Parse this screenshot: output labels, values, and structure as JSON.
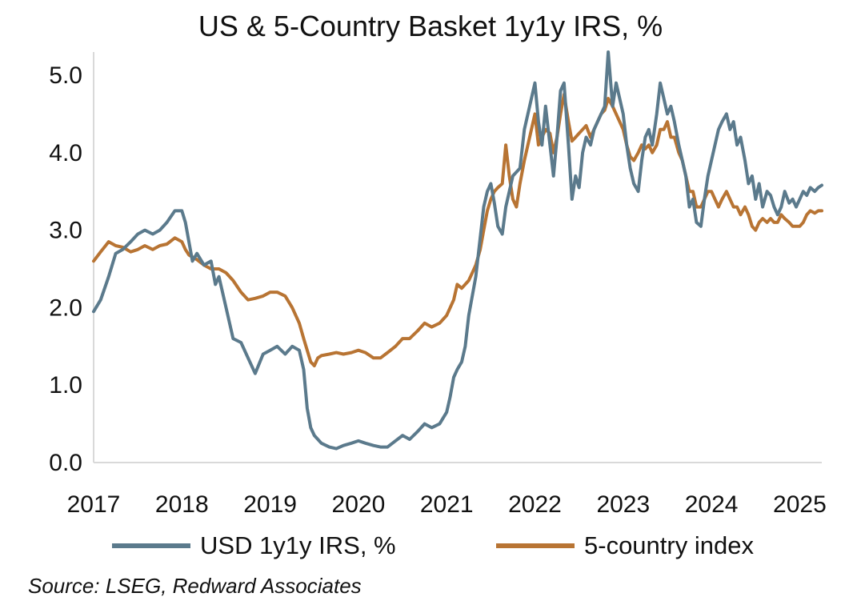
{
  "chart_data": {
    "type": "line",
    "title": "US & 5-Country Basket 1y1y IRS, %",
    "xlabel": "",
    "ylabel": "",
    "x_ticks": [
      "2017",
      "2018",
      "2019",
      "2020",
      "2021",
      "2022",
      "2023",
      "2024",
      "2025"
    ],
    "y_ticks": [
      "0.0",
      "1.0",
      "2.0",
      "3.0",
      "4.0",
      "5.0"
    ],
    "xlim": [
      2017.0,
      2025.25
    ],
    "ylim": [
      0,
      5.3
    ],
    "grid": false,
    "legend_position": "bottom",
    "source": "Source: LSEG, Redward Associates",
    "series": [
      {
        "name": "USD 1y1y IRS, %",
        "color": "#5b7a8c",
        "points": [
          [
            2017.0,
            1.95
          ],
          [
            2017.08,
            2.1
          ],
          [
            2017.17,
            2.4
          ],
          [
            2017.25,
            2.7
          ],
          [
            2017.33,
            2.75
          ],
          [
            2017.42,
            2.85
          ],
          [
            2017.5,
            2.95
          ],
          [
            2017.58,
            3.0
          ],
          [
            2017.67,
            2.95
          ],
          [
            2017.75,
            3.0
          ],
          [
            2017.83,
            3.1
          ],
          [
            2017.92,
            3.25
          ],
          [
            2018.0,
            3.25
          ],
          [
            2018.04,
            3.1
          ],
          [
            2018.08,
            2.85
          ],
          [
            2018.12,
            2.6
          ],
          [
            2018.17,
            2.7
          ],
          [
            2018.25,
            2.55
          ],
          [
            2018.33,
            2.6
          ],
          [
            2018.38,
            2.3
          ],
          [
            2018.42,
            2.4
          ],
          [
            2018.5,
            2.0
          ],
          [
            2018.58,
            1.6
          ],
          [
            2018.67,
            1.55
          ],
          [
            2018.75,
            1.35
          ],
          [
            2018.83,
            1.15
          ],
          [
            2018.92,
            1.4
          ],
          [
            2019.0,
            1.45
          ],
          [
            2019.08,
            1.5
          ],
          [
            2019.17,
            1.4
          ],
          [
            2019.25,
            1.5
          ],
          [
            2019.33,
            1.45
          ],
          [
            2019.38,
            1.2
          ],
          [
            2019.42,
            0.7
          ],
          [
            2019.46,
            0.45
          ],
          [
            2019.5,
            0.35
          ],
          [
            2019.58,
            0.25
          ],
          [
            2019.67,
            0.2
          ],
          [
            2019.75,
            0.18
          ],
          [
            2019.83,
            0.22
          ],
          [
            2019.92,
            0.25
          ],
          [
            2020.0,
            0.28
          ],
          [
            2020.08,
            0.25
          ],
          [
            2020.17,
            0.22
          ],
          [
            2020.25,
            0.2
          ],
          [
            2020.33,
            0.2
          ],
          [
            2020.42,
            0.28
          ],
          [
            2020.5,
            0.35
          ],
          [
            2020.58,
            0.3
          ],
          [
            2020.67,
            0.4
          ],
          [
            2020.75,
            0.5
          ],
          [
            2020.83,
            0.45
          ],
          [
            2020.92,
            0.5
          ],
          [
            2021.0,
            0.65
          ],
          [
            2021.04,
            0.85
          ],
          [
            2021.08,
            1.1
          ],
          [
            2021.12,
            1.2
          ],
          [
            2021.17,
            1.3
          ],
          [
            2021.21,
            1.5
          ],
          [
            2021.25,
            1.9
          ],
          [
            2021.33,
            2.4
          ],
          [
            2021.38,
            2.9
          ],
          [
            2021.42,
            3.3
          ],
          [
            2021.46,
            3.5
          ],
          [
            2021.5,
            3.6
          ],
          [
            2021.54,
            3.35
          ],
          [
            2021.58,
            3.05
          ],
          [
            2021.63,
            2.95
          ],
          [
            2021.67,
            3.3
          ],
          [
            2021.75,
            3.7
          ],
          [
            2021.83,
            3.8
          ],
          [
            2021.88,
            4.3
          ],
          [
            2021.92,
            4.5
          ],
          [
            2021.96,
            4.7
          ],
          [
            2022.0,
            4.9
          ],
          [
            2022.04,
            4.4
          ],
          [
            2022.08,
            4.1
          ],
          [
            2022.12,
            4.6
          ],
          [
            2022.17,
            4.1
          ],
          [
            2022.21,
            3.7
          ],
          [
            2022.25,
            4.2
          ],
          [
            2022.29,
            4.8
          ],
          [
            2022.33,
            4.9
          ],
          [
            2022.38,
            4.1
          ],
          [
            2022.42,
            3.4
          ],
          [
            2022.46,
            3.7
          ],
          [
            2022.5,
            3.55
          ],
          [
            2022.54,
            4.0
          ],
          [
            2022.58,
            4.2
          ],
          [
            2022.63,
            4.1
          ],
          [
            2022.67,
            4.3
          ],
          [
            2022.71,
            4.4
          ],
          [
            2022.75,
            4.5
          ],
          [
            2022.79,
            4.6
          ],
          [
            2022.83,
            5.3
          ],
          [
            2022.88,
            4.6
          ],
          [
            2022.92,
            4.9
          ],
          [
            2022.96,
            4.7
          ],
          [
            2023.0,
            4.5
          ],
          [
            2023.04,
            4.1
          ],
          [
            2023.08,
            3.8
          ],
          [
            2023.12,
            3.6
          ],
          [
            2023.17,
            3.5
          ],
          [
            2023.21,
            3.9
          ],
          [
            2023.25,
            4.2
          ],
          [
            2023.29,
            4.3
          ],
          [
            2023.33,
            4.1
          ],
          [
            2023.38,
            4.5
          ],
          [
            2023.42,
            4.9
          ],
          [
            2023.46,
            4.7
          ],
          [
            2023.5,
            4.5
          ],
          [
            2023.54,
            4.6
          ],
          [
            2023.58,
            4.4
          ],
          [
            2023.63,
            4.1
          ],
          [
            2023.67,
            3.9
          ],
          [
            2023.71,
            3.7
          ],
          [
            2023.75,
            3.3
          ],
          [
            2023.79,
            3.4
          ],
          [
            2023.83,
            3.1
          ],
          [
            2023.88,
            3.05
          ],
          [
            2023.92,
            3.4
          ],
          [
            2023.96,
            3.7
          ],
          [
            2024.0,
            3.9
          ],
          [
            2024.04,
            4.1
          ],
          [
            2024.08,
            4.3
          ],
          [
            2024.12,
            4.4
          ],
          [
            2024.17,
            4.5
          ],
          [
            2024.21,
            4.3
          ],
          [
            2024.25,
            4.4
          ],
          [
            2024.29,
            4.1
          ],
          [
            2024.33,
            4.2
          ],
          [
            2024.38,
            3.9
          ],
          [
            2024.42,
            3.6
          ],
          [
            2024.46,
            3.7
          ],
          [
            2024.5,
            3.4
          ],
          [
            2024.54,
            3.6
          ],
          [
            2024.58,
            3.3
          ],
          [
            2024.63,
            3.5
          ],
          [
            2024.67,
            3.45
          ],
          [
            2024.71,
            3.3
          ],
          [
            2024.75,
            3.2
          ],
          [
            2024.79,
            3.3
          ],
          [
            2024.83,
            3.5
          ],
          [
            2024.88,
            3.35
          ],
          [
            2024.92,
            3.4
          ],
          [
            2024.96,
            3.3
          ],
          [
            2025.0,
            3.4
          ],
          [
            2025.04,
            3.5
          ],
          [
            2025.08,
            3.45
          ],
          [
            2025.12,
            3.55
          ],
          [
            2025.17,
            3.5
          ],
          [
            2025.21,
            3.55
          ],
          [
            2025.25,
            3.58
          ]
        ]
      },
      {
        "name": "5-country index",
        "color": "#b87433",
        "points": [
          [
            2017.0,
            2.6
          ],
          [
            2017.08,
            2.72
          ],
          [
            2017.17,
            2.85
          ],
          [
            2017.25,
            2.8
          ],
          [
            2017.33,
            2.78
          ],
          [
            2017.42,
            2.72
          ],
          [
            2017.5,
            2.75
          ],
          [
            2017.58,
            2.8
          ],
          [
            2017.67,
            2.75
          ],
          [
            2017.75,
            2.8
          ],
          [
            2017.83,
            2.82
          ],
          [
            2017.92,
            2.9
          ],
          [
            2018.0,
            2.85
          ],
          [
            2018.04,
            2.75
          ],
          [
            2018.08,
            2.68
          ],
          [
            2018.17,
            2.62
          ],
          [
            2018.25,
            2.55
          ],
          [
            2018.33,
            2.5
          ],
          [
            2018.42,
            2.5
          ],
          [
            2018.5,
            2.45
          ],
          [
            2018.58,
            2.35
          ],
          [
            2018.67,
            2.2
          ],
          [
            2018.75,
            2.1
          ],
          [
            2018.83,
            2.12
          ],
          [
            2018.92,
            2.15
          ],
          [
            2019.0,
            2.2
          ],
          [
            2019.08,
            2.2
          ],
          [
            2019.17,
            2.15
          ],
          [
            2019.25,
            2.0
          ],
          [
            2019.33,
            1.8
          ],
          [
            2019.38,
            1.6
          ],
          [
            2019.42,
            1.45
          ],
          [
            2019.46,
            1.3
          ],
          [
            2019.5,
            1.25
          ],
          [
            2019.54,
            1.35
          ],
          [
            2019.58,
            1.38
          ],
          [
            2019.67,
            1.4
          ],
          [
            2019.75,
            1.42
          ],
          [
            2019.83,
            1.4
          ],
          [
            2019.92,
            1.42
          ],
          [
            2020.0,
            1.45
          ],
          [
            2020.08,
            1.42
          ],
          [
            2020.17,
            1.35
          ],
          [
            2020.25,
            1.35
          ],
          [
            2020.33,
            1.42
          ],
          [
            2020.42,
            1.5
          ],
          [
            2020.5,
            1.6
          ],
          [
            2020.58,
            1.6
          ],
          [
            2020.67,
            1.7
          ],
          [
            2020.75,
            1.8
          ],
          [
            2020.83,
            1.75
          ],
          [
            2020.92,
            1.8
          ],
          [
            2021.0,
            1.9
          ],
          [
            2021.08,
            2.1
          ],
          [
            2021.12,
            2.3
          ],
          [
            2021.17,
            2.25
          ],
          [
            2021.25,
            2.35
          ],
          [
            2021.29,
            2.45
          ],
          [
            2021.33,
            2.55
          ],
          [
            2021.38,
            2.75
          ],
          [
            2021.42,
            3.0
          ],
          [
            2021.46,
            3.25
          ],
          [
            2021.5,
            3.4
          ],
          [
            2021.54,
            3.5
          ],
          [
            2021.58,
            3.55
          ],
          [
            2021.63,
            3.6
          ],
          [
            2021.67,
            4.1
          ],
          [
            2021.71,
            3.7
          ],
          [
            2021.75,
            3.4
          ],
          [
            2021.79,
            3.3
          ],
          [
            2021.83,
            3.6
          ],
          [
            2021.88,
            3.9
          ],
          [
            2021.92,
            4.1
          ],
          [
            2021.96,
            4.3
          ],
          [
            2022.0,
            4.5
          ],
          [
            2022.04,
            4.1
          ],
          [
            2022.08,
            4.2
          ],
          [
            2022.12,
            4.3
          ],
          [
            2022.17,
            4.25
          ],
          [
            2022.21,
            4.0
          ],
          [
            2022.25,
            4.2
          ],
          [
            2022.29,
            4.5
          ],
          [
            2022.33,
            4.75
          ],
          [
            2022.38,
            4.4
          ],
          [
            2022.42,
            4.15
          ],
          [
            2022.46,
            4.2
          ],
          [
            2022.5,
            4.25
          ],
          [
            2022.54,
            4.3
          ],
          [
            2022.58,
            4.35
          ],
          [
            2022.63,
            4.2
          ],
          [
            2022.67,
            4.3
          ],
          [
            2022.71,
            4.4
          ],
          [
            2022.75,
            4.5
          ],
          [
            2022.79,
            4.55
          ],
          [
            2022.83,
            4.7
          ],
          [
            2022.88,
            4.6
          ],
          [
            2022.92,
            4.5
          ],
          [
            2022.96,
            4.4
          ],
          [
            2023.0,
            4.3
          ],
          [
            2023.04,
            4.1
          ],
          [
            2023.08,
            3.95
          ],
          [
            2023.12,
            3.9
          ],
          [
            2023.17,
            4.0
          ],
          [
            2023.21,
            4.1
          ],
          [
            2023.25,
            4.05
          ],
          [
            2023.29,
            4.1
          ],
          [
            2023.33,
            4.0
          ],
          [
            2023.38,
            4.1
          ],
          [
            2023.42,
            4.3
          ],
          [
            2023.46,
            4.3
          ],
          [
            2023.5,
            4.4
          ],
          [
            2023.54,
            4.2
          ],
          [
            2023.58,
            4.2
          ],
          [
            2023.63,
            4.0
          ],
          [
            2023.67,
            3.9
          ],
          [
            2023.71,
            3.7
          ],
          [
            2023.75,
            3.5
          ],
          [
            2023.79,
            3.5
          ],
          [
            2023.83,
            3.3
          ],
          [
            2023.88,
            3.3
          ],
          [
            2023.92,
            3.4
          ],
          [
            2023.96,
            3.5
          ],
          [
            2024.0,
            3.5
          ],
          [
            2024.04,
            3.4
          ],
          [
            2024.08,
            3.3
          ],
          [
            2024.12,
            3.4
          ],
          [
            2024.17,
            3.5
          ],
          [
            2024.21,
            3.4
          ],
          [
            2024.25,
            3.3
          ],
          [
            2024.29,
            3.3
          ],
          [
            2024.33,
            3.2
          ],
          [
            2024.38,
            3.3
          ],
          [
            2024.42,
            3.2
          ],
          [
            2024.46,
            3.05
          ],
          [
            2024.5,
            3.0
          ],
          [
            2024.54,
            3.1
          ],
          [
            2024.58,
            3.15
          ],
          [
            2024.63,
            3.1
          ],
          [
            2024.67,
            3.15
          ],
          [
            2024.71,
            3.1
          ],
          [
            2024.75,
            3.1
          ],
          [
            2024.79,
            3.2
          ],
          [
            2024.83,
            3.15
          ],
          [
            2024.88,
            3.1
          ],
          [
            2024.92,
            3.05
          ],
          [
            2024.96,
            3.05
          ],
          [
            2025.0,
            3.05
          ],
          [
            2025.04,
            3.1
          ],
          [
            2025.08,
            3.2
          ],
          [
            2025.12,
            3.25
          ],
          [
            2025.17,
            3.22
          ],
          [
            2025.21,
            3.25
          ],
          [
            2025.25,
            3.25
          ]
        ]
      }
    ]
  }
}
